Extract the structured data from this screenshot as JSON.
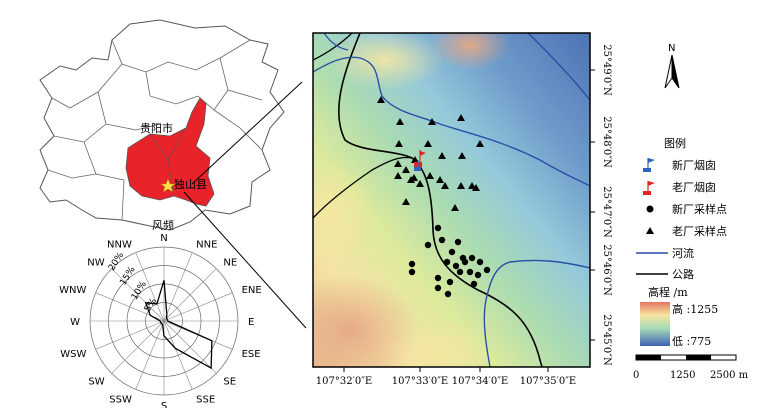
{
  "inset": {
    "city_label": "贵阳市",
    "county_label": "独山县",
    "wind_title": "风频"
  },
  "wind_rose": {
    "directions": [
      "N",
      "NNE",
      "NE",
      "ENE",
      "E",
      "ESE",
      "SE",
      "SSE",
      "S",
      "SSW",
      "SW",
      "WSW",
      "W",
      "WNW",
      "NW",
      "NNW"
    ],
    "ring_labels": [
      "5%",
      "10%",
      "15%",
      "20%"
    ],
    "ring_values": [
      5,
      10,
      15,
      20
    ],
    "frequencies": [
      11,
      2,
      1,
      1,
      1,
      14,
      18,
      8,
      4,
      1,
      1,
      1,
      1,
      4,
      7,
      5
    ]
  },
  "main_map": {
    "x_ticks": [
      "107°32′0″E",
      "107°33′0″E",
      "107°34′0″E",
      "107°35′0″E"
    ],
    "y_ticks": [
      "25°49′0″N",
      "25°48′0″N",
      "25°47′0″N",
      "25°46′0″N",
      "25°45′0″N"
    ],
    "colors": {
      "river": "#2a4fa6",
      "road": "#000000",
      "new_chimney": "#2d62c0",
      "old_chimney": "#e0261f",
      "county_fill": "#e8232a"
    }
  },
  "legend": {
    "north_label": "N",
    "title": "图例",
    "items": [
      {
        "key": "new_chimney",
        "label": "新厂烟囱"
      },
      {
        "key": "old_chimney",
        "label": "老厂烟囱"
      },
      {
        "key": "new_samples",
        "label": "新厂采样点"
      },
      {
        "key": "old_samples",
        "label": "老厂采样点"
      },
      {
        "key": "river",
        "label": "河流"
      },
      {
        "key": "road",
        "label": "公路"
      }
    ],
    "elevation_title": "高程 /m",
    "elevation_high": "高 :1255",
    "elevation_low": "低 :775",
    "scale_labels": [
      "0",
      "1250",
      "2500 m"
    ]
  }
}
